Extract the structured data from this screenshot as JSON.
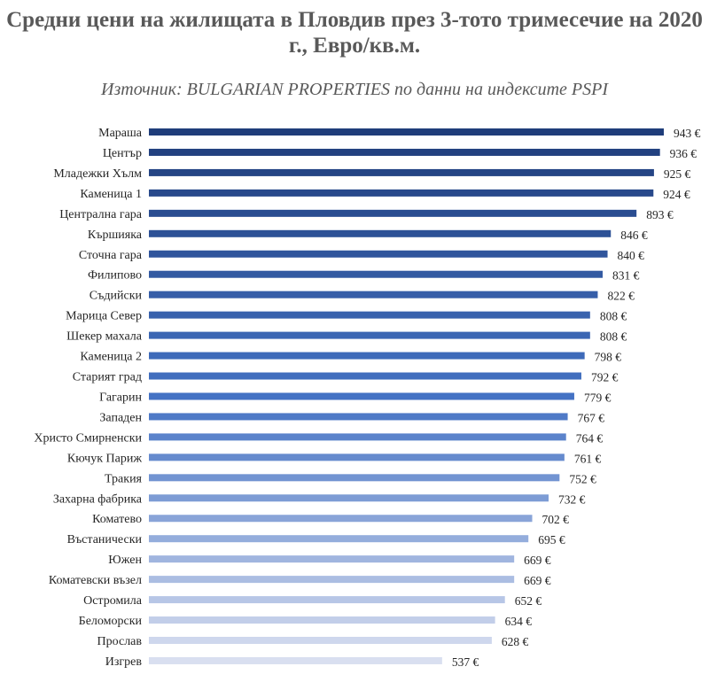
{
  "chart_data": {
    "type": "bar",
    "orientation": "horizontal",
    "title": "Средни цени на жилищата в Пловдив през 3-тото тримесечие на 2020 г., Евро/кв.м.",
    "subtitle": "Източник: BULGARIAN PROPERTIES по данни на индексите PSPI",
    "xlabel": "",
    "ylabel": "",
    "xlim": [
      0,
      943
    ],
    "grid": false,
    "legend": "none",
    "value_suffix": " €",
    "colors": {
      "darkest": "#1f3d7a",
      "middle": "#4472c4",
      "lightest": "#d9dff0"
    },
    "categories": [
      "Мараша",
      "Център",
      "Младежки Хълм",
      "Каменица 1",
      "Централна гара",
      "Кършияка",
      "Сточна гара",
      "Филипово",
      "Съдийски",
      "Марица Север",
      "Шекер махала",
      "Каменица 2",
      "Старият град",
      "Гагарин",
      "Западен",
      "Христо Смирненски",
      "Кючук Париж",
      "Тракия",
      "Захарна фабрика",
      "Коматево",
      "Въстанически",
      "Южен",
      "Коматевски възел",
      "Остромила",
      "Беломорски",
      "Прослав",
      "Изгрев"
    ],
    "values": [
      943,
      936,
      925,
      924,
      893,
      846,
      840,
      831,
      822,
      808,
      808,
      798,
      792,
      779,
      767,
      764,
      761,
      752,
      732,
      702,
      695,
      669,
      669,
      652,
      634,
      628,
      537
    ],
    "data_labels": [
      "943 €",
      "936 €",
      "925 €",
      "924 €",
      "893 €",
      "846 €",
      "840 €",
      "831 €",
      "822 €",
      "808 €",
      "808 €",
      "798 €",
      "792 €",
      "779 €",
      "767 €",
      "764 €",
      "761 €",
      "752 €",
      "732 €",
      "702 €",
      "695 €",
      "669 €",
      "669 €",
      "652 €",
      "634 €",
      "628 €",
      "537 €"
    ]
  }
}
